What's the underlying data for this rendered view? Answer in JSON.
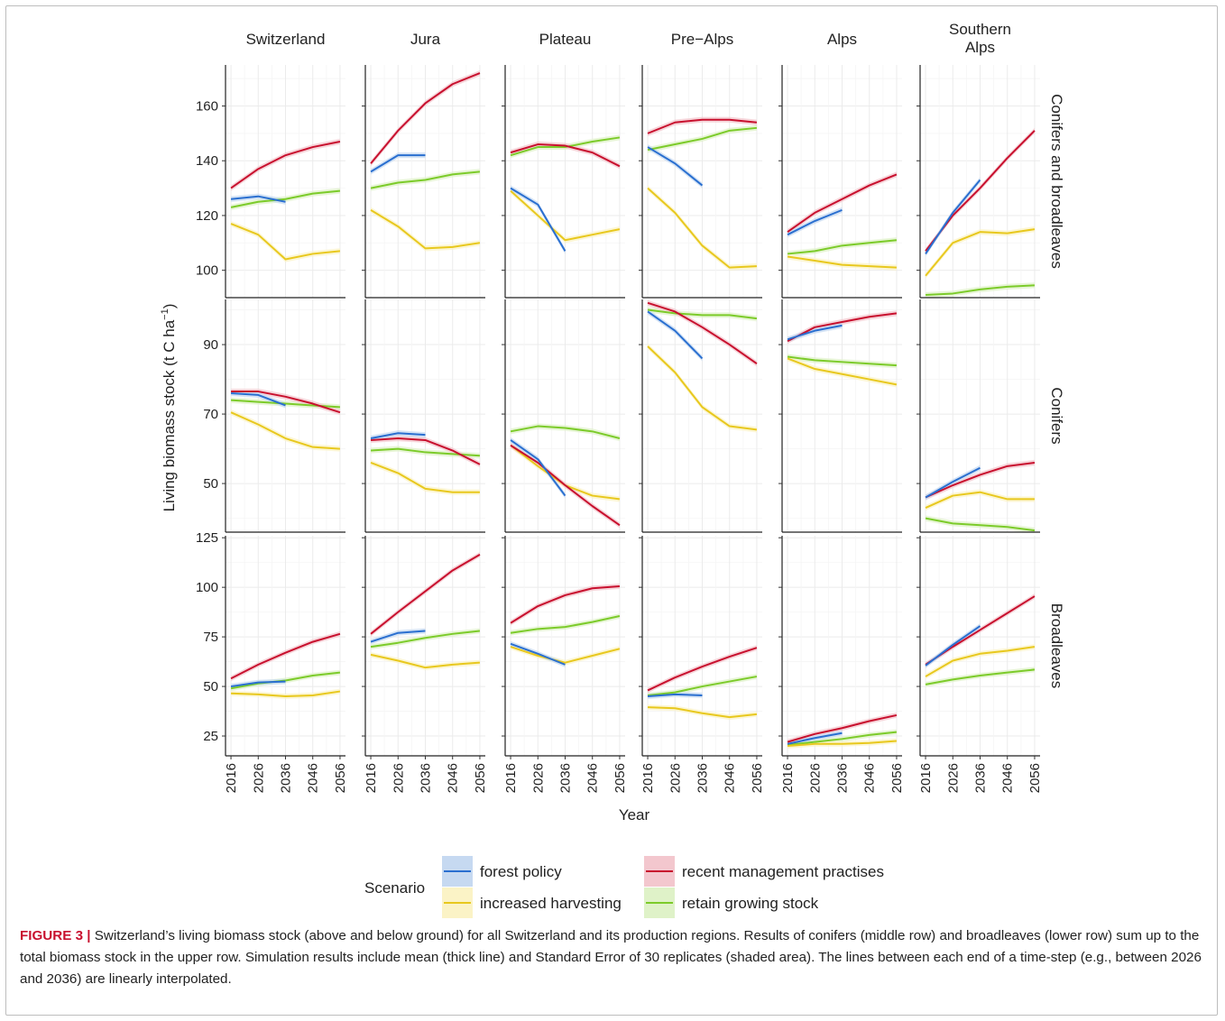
{
  "caption": {
    "label": "FIGURE 3 |",
    "text": " Switzerland’s living biomass stock (above and below ground) for all Switzerland and its production regions. Results of conifers (middle row) and broadleaves (lower row) sum up to the total biomass stock in the upper row. Simulation results include mean (thick line) and Standard Error of 30 replicates (shaded area). The lines between each end of a time-step (e.g., between 2026 and 2036) are linearly interpolated."
  },
  "legend": {
    "title": "Scenario",
    "items": [
      {
        "key": "fp",
        "label": "forest policy",
        "color": "#2a6fd0",
        "fill": "#c6d9f1"
      },
      {
        "key": "ih",
        "label": "increased harvesting",
        "color": "#e8c81e",
        "fill": "#fbf3c6"
      },
      {
        "key": "rm",
        "label": "recent management practises",
        "color": "#c8102e",
        "fill": "#f3c7ce"
      },
      {
        "key": "rg",
        "label": "retain growing stock",
        "color": "#7ccb2a",
        "fill": "#dff2c8"
      }
    ]
  },
  "chart_data": {
    "type": "line",
    "x_ticks": [
      "2016",
      "2026",
      "2036",
      "2046",
      "2056"
    ],
    "x": [
      2016,
      2026,
      2036,
      2046,
      2056
    ],
    "xlabel": "Year",
    "ylabel": "Living biomass stock (t C ha",
    "ylabel_sup": "−1",
    "ylabel_end": ")",
    "columns": [
      "Switzerland",
      "Jura",
      "Plateau",
      "Pre−Alps",
      "Alps",
      "Southern Alps"
    ],
    "rows": [
      "Conifers and broadleaves",
      "Conifers",
      "Broadleaves"
    ],
    "y_ticks": [
      [
        100,
        120,
        140,
        160
      ],
      [
        50,
        70,
        90
      ],
      [
        25,
        50,
        75,
        100,
        125
      ]
    ],
    "ylim": [
      [
        90,
        175
      ],
      [
        36,
        103
      ],
      [
        15,
        126
      ]
    ],
    "grid": true,
    "legend_position": "bottom",
    "panels": [
      [
        {
          "fp": [
            126,
            127,
            125
          ],
          "ih": [
            117,
            113,
            104,
            106,
            107
          ],
          "rm": [
            130,
            137,
            142,
            145,
            147
          ],
          "rg": [
            123,
            125,
            126,
            128,
            129
          ]
        },
        {
          "fp": [
            136,
            142,
            142
          ],
          "ih": [
            122,
            116,
            108,
            108.5,
            110
          ],
          "rm": [
            139,
            151,
            161,
            168,
            172
          ],
          "rg": [
            130,
            132,
            133,
            135,
            136
          ]
        },
        {
          "fp": [
            130,
            124,
            107
          ],
          "ih": [
            129,
            120,
            111,
            113,
            115
          ],
          "rm": [
            143,
            146,
            145.5,
            143,
            138
          ],
          "rg": [
            142,
            145,
            145,
            147,
            148.5
          ]
        },
        {
          "fp": [
            145,
            139,
            131
          ],
          "ih": [
            130,
            121,
            109,
            101,
            101.5
          ],
          "rm": [
            150,
            154,
            155,
            155,
            154
          ],
          "rg": [
            144,
            146,
            148,
            151,
            152
          ]
        },
        {
          "fp": [
            113,
            118,
            122
          ],
          "ih": [
            105,
            103.5,
            102,
            101.5,
            101
          ],
          "rm": [
            114,
            121,
            126,
            131,
            135
          ],
          "rg": [
            106,
            107,
            109,
            110,
            111
          ]
        },
        {
          "fp": [
            106,
            121,
            133
          ],
          "ih": [
            98,
            110,
            114,
            113.5,
            115
          ],
          "rm": [
            107,
            120,
            130,
            141,
            151
          ],
          "rg": [
            91,
            91.5,
            93,
            94,
            94.5
          ]
        }
      ],
      [
        {
          "fp": [
            76,
            75.5,
            72.5
          ],
          "ih": [
            70.5,
            67,
            63,
            60.5,
            60
          ],
          "rm": [
            76.5,
            76.5,
            75,
            73,
            70.5
          ],
          "rg": [
            74,
            73.5,
            73,
            72.5,
            72
          ]
        },
        {
          "fp": [
            63,
            64.5,
            64
          ],
          "ih": [
            56,
            53,
            48.5,
            47.5,
            47.5
          ],
          "rm": [
            62.5,
            63,
            62.5,
            59.5,
            55.5
          ],
          "rg": [
            59.5,
            60,
            59,
            58.5,
            58
          ]
        },
        {
          "fp": [
            62.5,
            57,
            46.5
          ],
          "ih": [
            61,
            55,
            49.5,
            46.5,
            45.5
          ],
          "rm": [
            61,
            56,
            49.5,
            43.5,
            38
          ],
          "rg": [
            65,
            66.5,
            66,
            65,
            63
          ]
        },
        {
          "fp": [
            99.5,
            94,
            86
          ],
          "ih": [
            89.5,
            82,
            72,
            66.5,
            65.5
          ],
          "rm": [
            102,
            99.5,
            95,
            90,
            84.5
          ],
          "rg": [
            100,
            99,
            98.5,
            98.5,
            97.5
          ]
        },
        {
          "fp": [
            91.5,
            94,
            95.5
          ],
          "ih": [
            86,
            83,
            81.5,
            80,
            78.5
          ],
          "rm": [
            91,
            95,
            96.5,
            98,
            99
          ],
          "rg": [
            86.5,
            85.5,
            85,
            84.5,
            84
          ]
        },
        {
          "fp": [
            46,
            50.5,
            54.5
          ],
          "ih": [
            43,
            46.5,
            47.5,
            45.5,
            45.5
          ],
          "rm": [
            46,
            49.5,
            52.5,
            55,
            56
          ],
          "rg": [
            40,
            38.5,
            38,
            37.5,
            36.5
          ]
        }
      ],
      [
        {
          "fp": [
            50,
            52,
            52.5
          ],
          "ih": [
            46.5,
            46,
            45,
            45.5,
            47.5
          ],
          "rm": [
            54,
            61,
            67,
            72.5,
            76.5
          ],
          "rg": [
            49,
            51.5,
            53,
            55.5,
            57
          ]
        },
        {
          "fp": [
            72.5,
            77,
            78
          ],
          "ih": [
            66,
            63,
            59.5,
            61,
            62
          ],
          "rm": [
            76.5,
            87.5,
            98,
            108.5,
            116.5
          ],
          "rg": [
            70,
            72,
            74.5,
            76.5,
            78
          ]
        },
        {
          "fp": [
            71.5,
            66.5,
            61
          ],
          "ih": [
            70,
            65.5,
            62,
            65.5,
            69
          ],
          "rm": [
            82,
            90.5,
            96,
            99.5,
            100.5
          ],
          "rg": [
            77,
            79,
            80,
            82.5,
            85.5
          ]
        },
        {
          "fp": [
            45,
            46,
            45.5
          ],
          "ih": [
            39.5,
            39,
            36.5,
            34.5,
            36
          ],
          "rm": [
            48,
            54.5,
            60,
            65,
            69.5
          ],
          "rg": [
            45.5,
            47,
            50,
            52.5,
            55
          ]
        },
        {
          "fp": [
            21,
            24,
            26.5
          ],
          "ih": [
            20,
            21,
            21,
            21.5,
            22.5
          ],
          "rm": [
            22,
            26,
            29,
            32.5,
            35.5
          ],
          "rg": [
            20.5,
            22,
            23.5,
            25.5,
            27
          ]
        },
        {
          "fp": [
            60.5,
            71,
            80.5
          ],
          "ih": [
            55,
            63,
            66.5,
            68,
            70
          ],
          "rm": [
            61,
            70,
            78.5,
            87,
            95.5
          ],
          "rg": [
            51,
            53.5,
            55.5,
            57,
            58.5
          ]
        }
      ]
    ]
  }
}
